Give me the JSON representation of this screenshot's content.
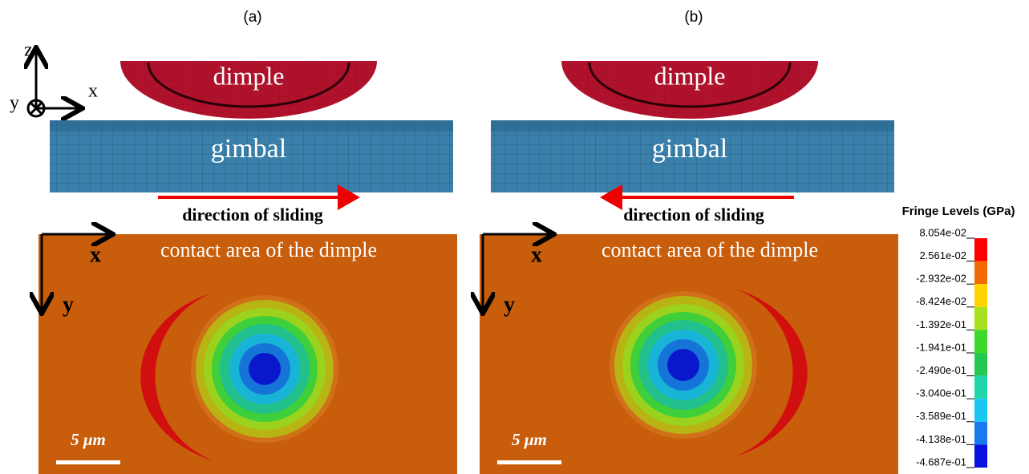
{
  "panels": [
    {
      "label": "(a)",
      "dimple": "dimple",
      "gimbal": "gimbal",
      "direction": "direction of sliding",
      "contact_title": "contact area of the dimple",
      "x_axis": "x",
      "y_axis": "y",
      "scale_bar": "5 μm"
    },
    {
      "label": "(b)",
      "dimple": "dimple",
      "gimbal": "gimbal",
      "direction": "direction of sliding",
      "contact_title": "contact area of the dimple",
      "x_axis": "x",
      "y_axis": "y",
      "scale_bar": "5 μm"
    }
  ],
  "coordinate_system": {
    "z": "z",
    "x": "x",
    "y": "y"
  },
  "legend": {
    "title": "Fringe Levels (GPa)",
    "levels": [
      "8.054e-02",
      "2.561e-02",
      "-2.932e-02",
      "-8.424e-02",
      "-1.392e-01",
      "-1.941e-01",
      "-2.490e-01",
      "-3.040e-01",
      "-3.589e-01",
      "-4.138e-01",
      "-4.687e-01"
    ]
  }
}
